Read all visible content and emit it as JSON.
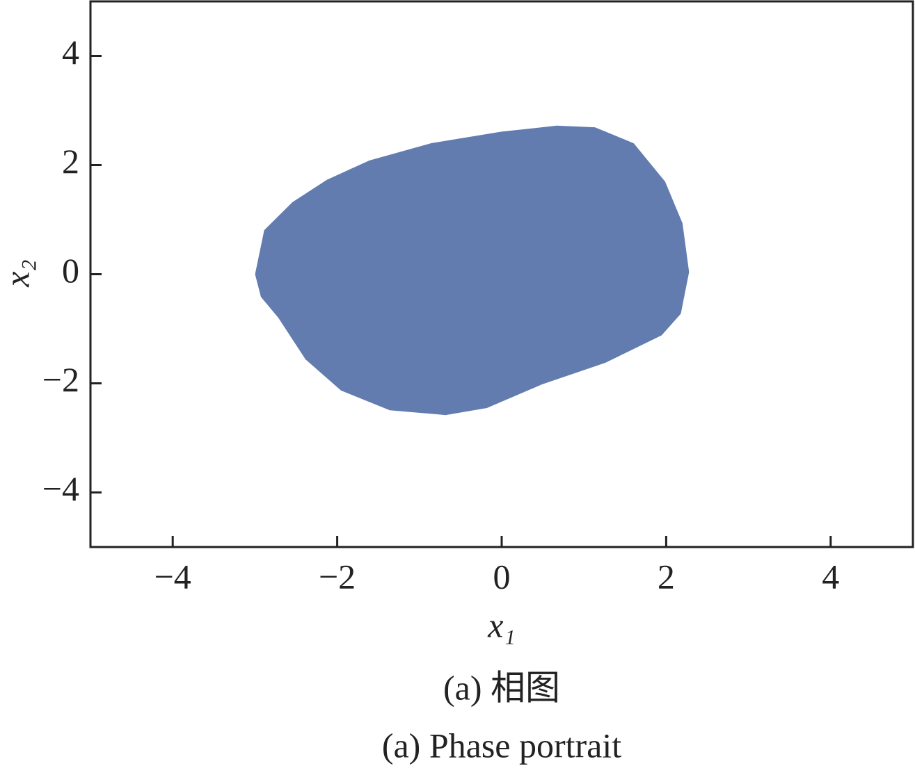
{
  "chart_data": {
    "type": "area",
    "xlabel": "x₁",
    "ylabel": "x₂",
    "caption": [
      "(a)  相图",
      "(a)  Phase portrait"
    ],
    "color": "#637cb0",
    "x": [
      -2.99,
      -2.88,
      -2.54,
      -2.12,
      -1.61,
      -0.85,
      0,
      0.67,
      1.13,
      1.6,
      1.98,
      2.19,
      2.27,
      2.17,
      1.94,
      1.26,
      0.5,
      -0.18,
      -0.68,
      -1.36,
      -1.95,
      -2.38,
      -2.71,
      -2.92
    ],
    "y": [
      0,
      0.8,
      1.31,
      1.72,
      2.07,
      2.39,
      2.6,
      2.71,
      2.68,
      2.39,
      1.69,
      0.93,
      0.04,
      -0.72,
      -1.11,
      -1.61,
      -2.0,
      -2.44,
      -2.57,
      -2.48,
      -2.12,
      -1.55,
      -0.79,
      -0.41
    ],
    "xlim": [
      -5,
      5
    ],
    "ylim": [
      -5,
      5
    ],
    "xticks": [
      {
        "value": -4,
        "label": "−4"
      },
      {
        "value": -2,
        "label": "−2"
      },
      0,
      2,
      4
    ],
    "yticks": [
      {
        "value": -4,
        "label": "−4"
      },
      {
        "value": -2,
        "label": "−2"
      },
      0,
      2,
      4
    ]
  }
}
